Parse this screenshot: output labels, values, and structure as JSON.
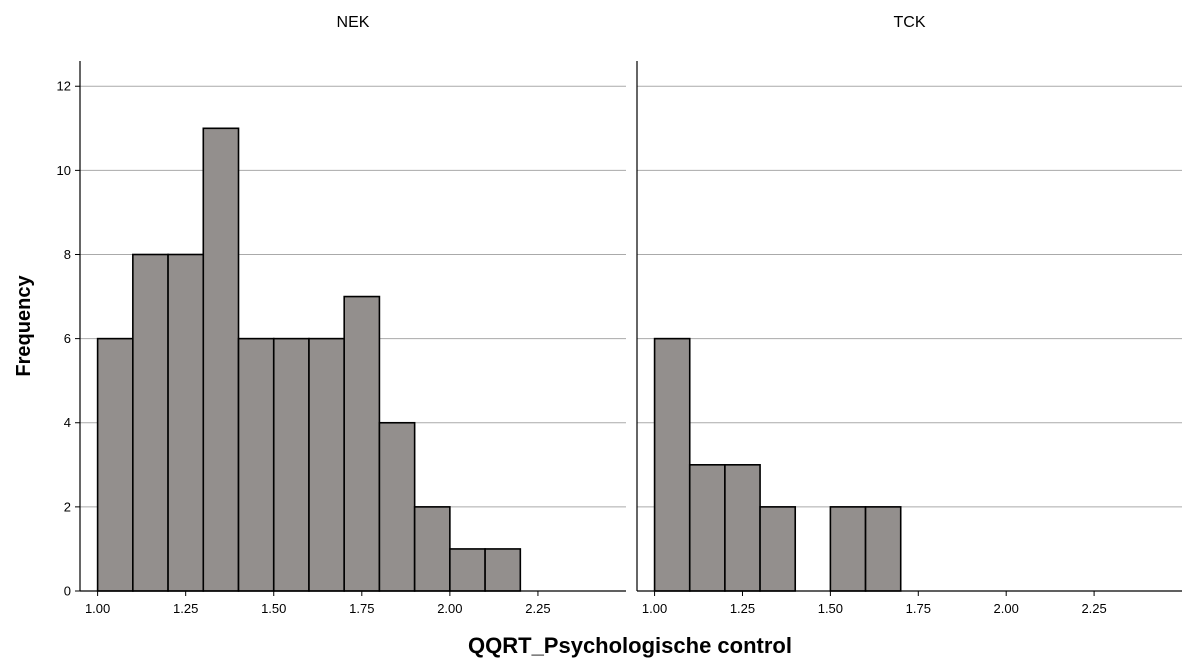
{
  "chart_data": {
    "type": "bar",
    "xlabel": "QQRT_Psychologische control",
    "ylabel": "Frequency",
    "ylim": [
      0,
      12.6
    ],
    "yticks": [
      0,
      2,
      4,
      6,
      8,
      10,
      12
    ],
    "xlim": [
      0.95,
      2.5
    ],
    "xticks": [
      1.0,
      1.25,
      1.5,
      1.75,
      2.0,
      2.25
    ],
    "xtick_labels": [
      "1.00",
      "1.25",
      "1.50",
      "1.75",
      "2.00",
      "2.25"
    ],
    "grid": "horizontal",
    "bar_color": "#938f8d",
    "panels": [
      {
        "title": "NEK",
        "bins": [
          {
            "x0": 1.0,
            "x1": 1.1,
            "value": 6
          },
          {
            "x0": 1.1,
            "x1": 1.2,
            "value": 8
          },
          {
            "x0": 1.2,
            "x1": 1.3,
            "value": 8
          },
          {
            "x0": 1.3,
            "x1": 1.4,
            "value": 11
          },
          {
            "x0": 1.4,
            "x1": 1.5,
            "value": 6
          },
          {
            "x0": 1.5,
            "x1": 1.6,
            "value": 6
          },
          {
            "x0": 1.6,
            "x1": 1.7,
            "value": 6
          },
          {
            "x0": 1.7,
            "x1": 1.8,
            "value": 7
          },
          {
            "x0": 1.8,
            "x1": 1.9,
            "value": 4
          },
          {
            "x0": 1.9,
            "x1": 2.0,
            "value": 2
          },
          {
            "x0": 2.0,
            "x1": 2.1,
            "value": 1
          },
          {
            "x0": 2.1,
            "x1": 2.2,
            "value": 1
          }
        ]
      },
      {
        "title": "TCK",
        "bins": [
          {
            "x0": 1.0,
            "x1": 1.1,
            "value": 6
          },
          {
            "x0": 1.1,
            "x1": 1.2,
            "value": 3
          },
          {
            "x0": 1.2,
            "x1": 1.3,
            "value": 3
          },
          {
            "x0": 1.3,
            "x1": 1.4,
            "value": 2
          },
          {
            "x0": 1.5,
            "x1": 1.6,
            "value": 2
          },
          {
            "x0": 1.6,
            "x1": 1.7,
            "value": 2
          }
        ]
      }
    ]
  }
}
